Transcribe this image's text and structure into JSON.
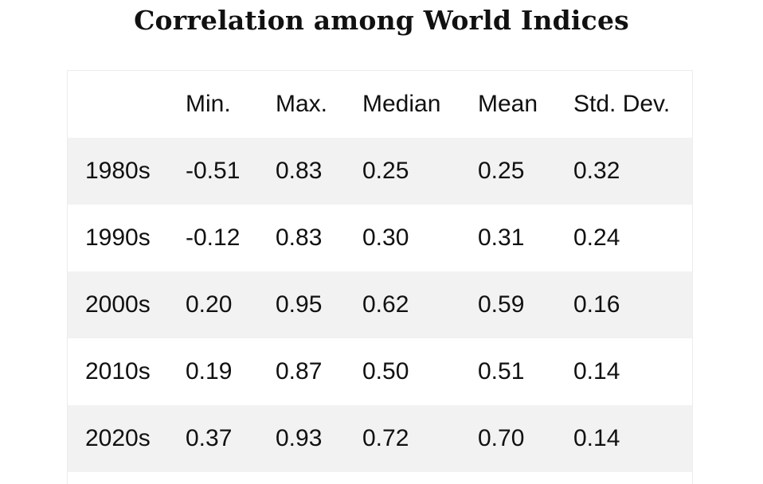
{
  "chart_data": {
    "type": "table",
    "title": "Correlation among World Indices",
    "columns": [
      "",
      "Min.",
      "Max.",
      "Median",
      "Mean",
      "Std. Dev."
    ],
    "rows": [
      [
        "1980s",
        "-0.51",
        "0.83",
        "0.25",
        "0.25",
        "0.32"
      ],
      [
        "1990s",
        "-0.12",
        "0.83",
        "0.30",
        "0.31",
        "0.24"
      ],
      [
        "2000s",
        "0.20",
        "0.95",
        "0.62",
        "0.59",
        "0.16"
      ],
      [
        "2010s",
        "0.19",
        "0.87",
        "0.50",
        "0.51",
        "0.14"
      ],
      [
        "2020s",
        "0.37",
        "0.93",
        "0.72",
        "0.70",
        "0.14"
      ]
    ]
  },
  "colors": {
    "stripe": "#f2f2f2",
    "background": "#ffffff",
    "text": "#111111"
  }
}
